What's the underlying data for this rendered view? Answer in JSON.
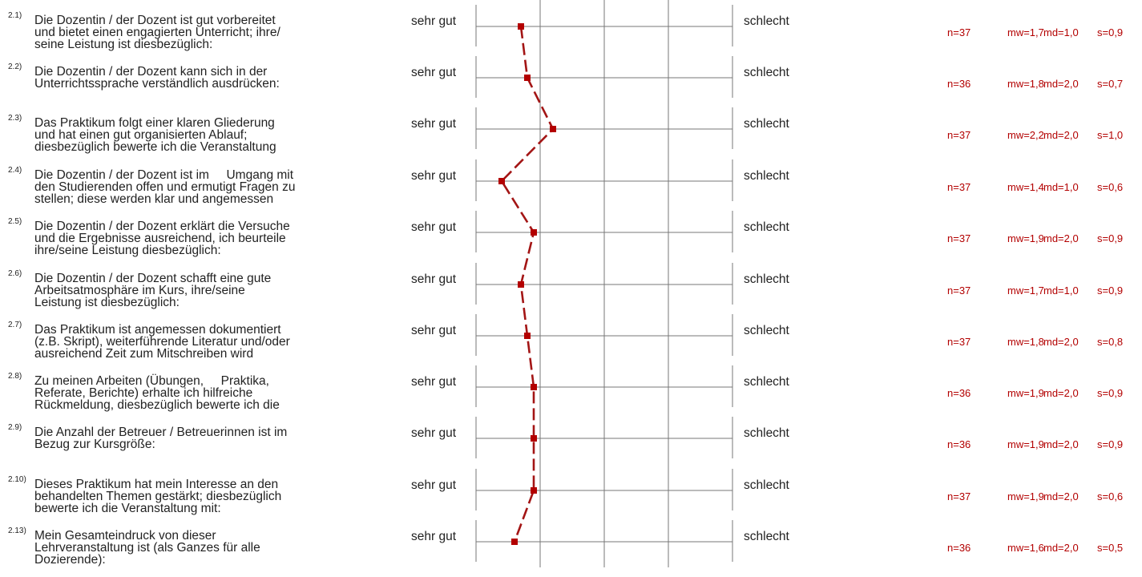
{
  "chart_data": {
    "type": "line",
    "scale": {
      "min": 1,
      "max": 5,
      "left_label": "sehr gut",
      "right_label": "schlecht"
    },
    "colors": {
      "line": "#a31515",
      "marker": "#b30000",
      "stats": "#b30000",
      "axis": "#777777"
    },
    "items": [
      {
        "num": "2.1)",
        "lines": [
          "Die Dozentin / der Dozent ist gut vorbereitet",
          "und bietet einen engagierten Unterricht; ihre/",
          "seine Leistung ist diesbezüglich:"
        ],
        "n": "n=37",
        "mw": "mw=1,7",
        "md": "md=1,0",
        "s": "s=0,9",
        "value": 1.7
      },
      {
        "num": "2.2)",
        "lines": [
          "Die Dozentin / der Dozent kann sich in der",
          "Unterrichtssprache verständlich ausdrücken:"
        ],
        "n": "n=36",
        "mw": "mw=1,8",
        "md": "md=2,0",
        "s": "s=0,7",
        "value": 1.8
      },
      {
        "num": "2.3)",
        "lines": [
          "Das Praktikum folgt einer klaren Gliederung",
          "und hat einen gut organisierten Ablauf;",
          "diesbezüglich bewerte ich die Veranstaltung"
        ],
        "n": "n=37",
        "mw": "mw=2,2",
        "md": "md=2,0",
        "s": "s=1,0",
        "value": 2.2
      },
      {
        "num": "2.4)",
        "lines": [
          "Die Dozentin / der Dozent ist im     Umgang mit",
          "den Studierenden offen und ermutigt Fragen zu",
          "stellen; diese werden klar und angemessen"
        ],
        "n": "n=37",
        "mw": "mw=1,4",
        "md": "md=1,0",
        "s": "s=0,6",
        "value": 1.4
      },
      {
        "num": "2.5)",
        "lines": [
          "Die Dozentin / der Dozent erklärt die Versuche",
          "und die Ergebnisse ausreichend, ich beurteile",
          "ihre/seine Leistung diesbezüglich:"
        ],
        "n": "n=37",
        "mw": "mw=1,9",
        "md": "md=2,0",
        "s": "s=0,9",
        "value": 1.9
      },
      {
        "num": "2.6)",
        "lines": [
          "Die Dozentin / der Dozent schafft eine gute",
          "Arbeitsatmosphäre im Kurs, ihre/seine",
          "Leistung ist diesbezüglich:"
        ],
        "n": "n=37",
        "mw": "mw=1,7",
        "md": "md=1,0",
        "s": "s=0,9",
        "value": 1.7
      },
      {
        "num": "2.7)",
        "lines": [
          "Das Praktikum ist angemessen dokumentiert",
          "(z.B. Skript), weiterführende Literatur und/oder",
          "ausreichend Zeit zum Mitschreiben wird"
        ],
        "n": "n=37",
        "mw": "mw=1,8",
        "md": "md=2,0",
        "s": "s=0,8",
        "value": 1.8
      },
      {
        "num": "2.8)",
        "lines": [
          "Zu meinen Arbeiten (Übungen,     Praktika,",
          "Referate, Berichte) erhalte ich hilfreiche",
          "Rückmeldung, diesbezüglich bewerte ich die"
        ],
        "n": "n=36",
        "mw": "mw=1,9",
        "md": "md=2,0",
        "s": "s=0,9",
        "value": 1.9
      },
      {
        "num": "2.9)",
        "lines": [
          "Die Anzahl der Betreuer / Betreuerinnen ist im",
          "Bezug zur Kursgröße:"
        ],
        "n": "n=36",
        "mw": "mw=1,9",
        "md": "md=2,0",
        "s": "s=0,9",
        "value": 1.9
      },
      {
        "num": "2.10)",
        "lines": [
          "Dieses Praktikum hat mein Interesse an den",
          "behandelten Themen gestärkt; diesbezüglich",
          "bewerte ich die Veranstaltung mit:"
        ],
        "n": "n=37",
        "mw": "mw=1,9",
        "md": "md=2,0",
        "s": "s=0,6",
        "value": 1.9
      },
      {
        "num": "2.13)",
        "lines": [
          "Mein Gesamteindruck von dieser",
          "Lehrveranstaltung ist (als Ganzes für alle",
          "Dozierende):"
        ],
        "n": "n=36",
        "mw": "mw=1,6",
        "md": "md=2,0",
        "s": "s=0,5",
        "value": 1.6
      }
    ]
  }
}
